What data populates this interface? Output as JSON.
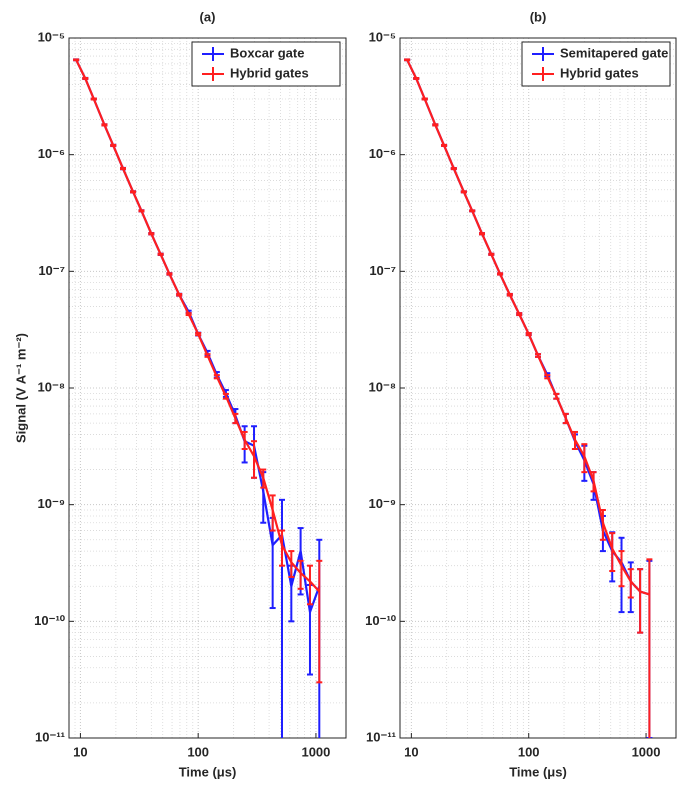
{
  "chart_data": [
    {
      "type": "errorbar",
      "title": "(a)",
      "x_label": "Time (μs)",
      "y_label": "Signal (V A⁻¹ m⁻²)",
      "x_scale": "log",
      "y_scale": "log",
      "grid": true,
      "legend": "northeast",
      "xlim": [
        8,
        1800
      ],
      "ylim": [
        1e-11,
        1e-05
      ],
      "xticks": [
        10,
        100,
        1000
      ],
      "yticks": [
        {
          "value": 1e-11,
          "label": "10⁻¹¹"
        },
        {
          "value": 1e-10,
          "label": "10⁻¹⁰"
        },
        {
          "value": 1e-09,
          "label": "10⁻⁹"
        },
        {
          "value": 1e-08,
          "label": "10⁻⁸"
        },
        {
          "value": 1e-07,
          "label": "10⁻⁷"
        },
        {
          "value": 1e-06,
          "label": "10⁻⁶"
        },
        {
          "value": 1e-05,
          "label": "10⁻⁵"
        }
      ],
      "x": [
        9.2,
        11,
        13,
        16,
        19,
        23,
        28,
        33,
        40,
        48,
        57,
        69,
        83,
        100,
        120,
        144,
        172,
        207,
        248,
        298,
        357,
        429,
        515,
        618,
        741,
        890,
        1068
      ],
      "series": [
        {
          "name": "Boxcar gate",
          "color": "#1f1fff",
          "values": [
            6.5e-06,
            4.5e-06,
            3e-06,
            1.8e-06,
            1.2e-06,
            7.6e-07,
            4.8e-07,
            3.3e-07,
            2.1e-07,
            1.4e-07,
            9.5e-08,
            6.3e-08,
            4.5e-08,
            2.9e-08,
            2e-08,
            1.3e-08,
            9e-09,
            5.8e-09,
            3.5e-09,
            3.2e-09,
            1.3e-09,
            4.5e-10,
            5.5e-10,
            2e-10,
            4e-10,
            1.2e-10,
            2e-10
          ],
          "errors": [
            6e-08,
            5e-08,
            3e-08,
            2e-08,
            1.5e-08,
            1e-08,
            6e-09,
            4e-09,
            3e-09,
            2e-09,
            1.5e-09,
            1.2e-09,
            1e-09,
            8e-10,
            8e-10,
            7e-10,
            6e-10,
            8e-10,
            1.2e-09,
            1.5e-09,
            6e-10,
            3.2e-10,
            5.5e-10,
            1e-10,
            2.3e-10,
            8.5e-11,
            3e-10
          ]
        },
        {
          "name": "Hybrid gates",
          "color": "#ff1f1f",
          "values": [
            6.5e-06,
            4.5e-06,
            3e-06,
            1.8e-06,
            1.2e-06,
            7.6e-07,
            4.8e-07,
            3.3e-07,
            2.1e-07,
            1.4e-07,
            9.5e-08,
            6.3e-08,
            4.3e-08,
            2.9e-08,
            1.9e-08,
            1.25e-08,
            8.5e-09,
            5.5e-09,
            3.6e-09,
            2.6e-09,
            1.7e-09,
            9e-10,
            4.5e-10,
            3.2e-10,
            2.6e-10,
            2.2e-10,
            1.8e-10
          ],
          "errors": [
            5e-08,
            4e-08,
            3e-08,
            2e-08,
            1.2e-08,
            8e-09,
            5e-09,
            3e-09,
            2.5e-09,
            1.5e-09,
            1.2e-09,
            1e-09,
            8e-10,
            6e-10,
            5e-10,
            4e-10,
            4e-10,
            5e-10,
            6e-10,
            9e-10,
            3e-10,
            3e-10,
            1.5e-10,
            8e-11,
            7e-11,
            8e-11,
            1.5e-10
          ]
        }
      ]
    },
    {
      "type": "errorbar",
      "title": "(b)",
      "x_label": "Time (μs)",
      "x_scale": "log",
      "y_scale": "log",
      "grid": true,
      "legend": "northeast",
      "xlim": [
        8,
        1800
      ],
      "ylim": [
        1e-11,
        1e-05
      ],
      "xticks": [
        10,
        100,
        1000
      ],
      "yticks": [
        {
          "value": 1e-11,
          "label": "10⁻¹¹"
        },
        {
          "value": 1e-10,
          "label": "10⁻¹⁰"
        },
        {
          "value": 1e-09,
          "label": "10⁻⁹"
        },
        {
          "value": 1e-08,
          "label": "10⁻⁸"
        },
        {
          "value": 1e-07,
          "label": "10⁻⁷"
        },
        {
          "value": 1e-06,
          "label": "10⁻⁶"
        },
        {
          "value": 1e-05,
          "label": "10⁻⁵"
        }
      ],
      "x": [
        9.2,
        11,
        13,
        16,
        19,
        23,
        28,
        33,
        40,
        48,
        57,
        69,
        83,
        100,
        120,
        144,
        172,
        207,
        248,
        298,
        357,
        429,
        515,
        618,
        741,
        890,
        1068
      ],
      "series": [
        {
          "name": "Semitapered gate",
          "color": "#1f1fff",
          "values": [
            6.5e-06,
            4.5e-06,
            3e-06,
            1.8e-06,
            1.2e-06,
            7.6e-07,
            4.8e-07,
            3.3e-07,
            2.1e-07,
            1.4e-07,
            9.5e-08,
            6.3e-08,
            4.3e-08,
            2.9e-08,
            1.9e-08,
            1.3e-08,
            8.5e-09,
            5.5e-09,
            3.5e-09,
            2.4e-09,
            1.5e-09,
            6e-10,
            4e-10,
            3.2e-10,
            2.2e-10,
            1.8e-10,
            1.7e-10
          ],
          "errors": [
            5e-08,
            4e-08,
            3e-08,
            2e-08,
            1.2e-08,
            8e-09,
            5e-09,
            3e-09,
            2.5e-09,
            1.5e-09,
            1.2e-09,
            1e-09,
            8e-10,
            6e-10,
            5e-10,
            4e-10,
            4e-10,
            5e-10,
            5e-10,
            8e-10,
            4e-10,
            2e-10,
            1.8e-10,
            2e-10,
            1e-10,
            1e-10,
            1.6e-10
          ]
        },
        {
          "name": "Hybrid gates",
          "color": "#ff1f1f",
          "values": [
            6.5e-06,
            4.5e-06,
            3e-06,
            1.8e-06,
            1.2e-06,
            7.6e-07,
            4.8e-07,
            3.3e-07,
            2.1e-07,
            1.4e-07,
            9.5e-08,
            6.3e-08,
            4.3e-08,
            2.9e-08,
            1.9e-08,
            1.25e-08,
            8.5e-09,
            5.5e-09,
            3.6e-09,
            2.6e-09,
            1.6e-09,
            7e-10,
            4.2e-10,
            3e-10,
            2.2e-10,
            1.8e-10,
            1.7e-10
          ],
          "errors": [
            5e-08,
            4e-08,
            3e-08,
            2e-08,
            1.2e-08,
            8e-09,
            5e-09,
            3e-09,
            2.5e-09,
            1.5e-09,
            1.2e-09,
            1e-09,
            8e-10,
            6e-10,
            5e-10,
            4e-10,
            4e-10,
            5e-10,
            6e-10,
            7e-10,
            3e-10,
            2e-10,
            1.5e-10,
            1e-10,
            6e-11,
            1e-10,
            1.7e-10
          ]
        }
      ]
    }
  ]
}
